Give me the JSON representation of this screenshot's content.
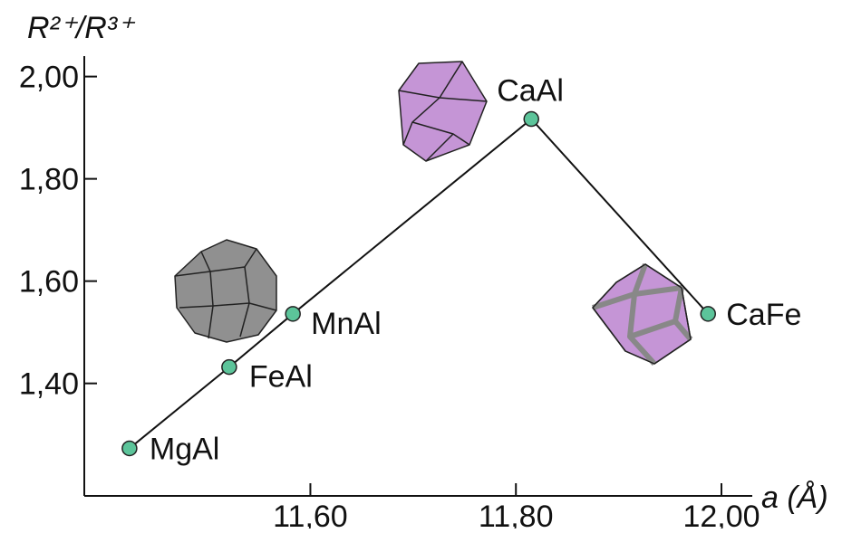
{
  "chart_data": {
    "type": "line",
    "xlabel": "a (Å)",
    "ylabel": "R²⁺/R³⁺",
    "categories": [
      "MgAl",
      "FeAl",
      "MnAl",
      "CaAl",
      "CaFe"
    ],
    "x": [
      11.424,
      11.521,
      11.583,
      11.815,
      11.987
    ],
    "values": [
      1.273,
      1.432,
      1.536,
      1.917,
      1.536
    ],
    "color": "#5cc49a",
    "line_color": "#111111",
    "xlim": [
      11.38,
      12.03
    ],
    "xticks": [
      {
        "value": 11.6,
        "label": "11,60"
      },
      {
        "value": 11.8,
        "label": "11,80"
      },
      {
        "value": 12.0,
        "label": "12,00"
      }
    ],
    "ylim": [
      1.18,
      2.04
    ],
    "yticks": [
      {
        "value": 1.4,
        "label": "1,40"
      },
      {
        "value": 1.6,
        "label": "1,60"
      },
      {
        "value": 1.8,
        "label": "1,80"
      },
      {
        "value": 2.0,
        "label": "2,00"
      }
    ]
  }
}
